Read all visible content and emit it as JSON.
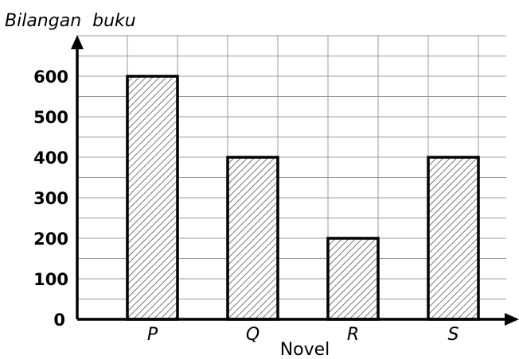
{
  "chart_data": {
    "type": "bar",
    "categories": [
      "P",
      "Q",
      "R",
      "S"
    ],
    "values": [
      600,
      400,
      200,
      400
    ],
    "ylabel": "Bilangan  buku",
    "xlabel": "Novel",
    "ylim": [
      0,
      600
    ],
    "yticks": [
      "0",
      "100",
      "200",
      "300",
      "400",
      "500",
      "600"
    ],
    "grid": true,
    "bar_fill": "diagonal-hatch",
    "colors": {
      "grid": "#9a9a9a",
      "axis": "#000000",
      "bar_outline": "#000000",
      "hatch": "#555555"
    }
  }
}
